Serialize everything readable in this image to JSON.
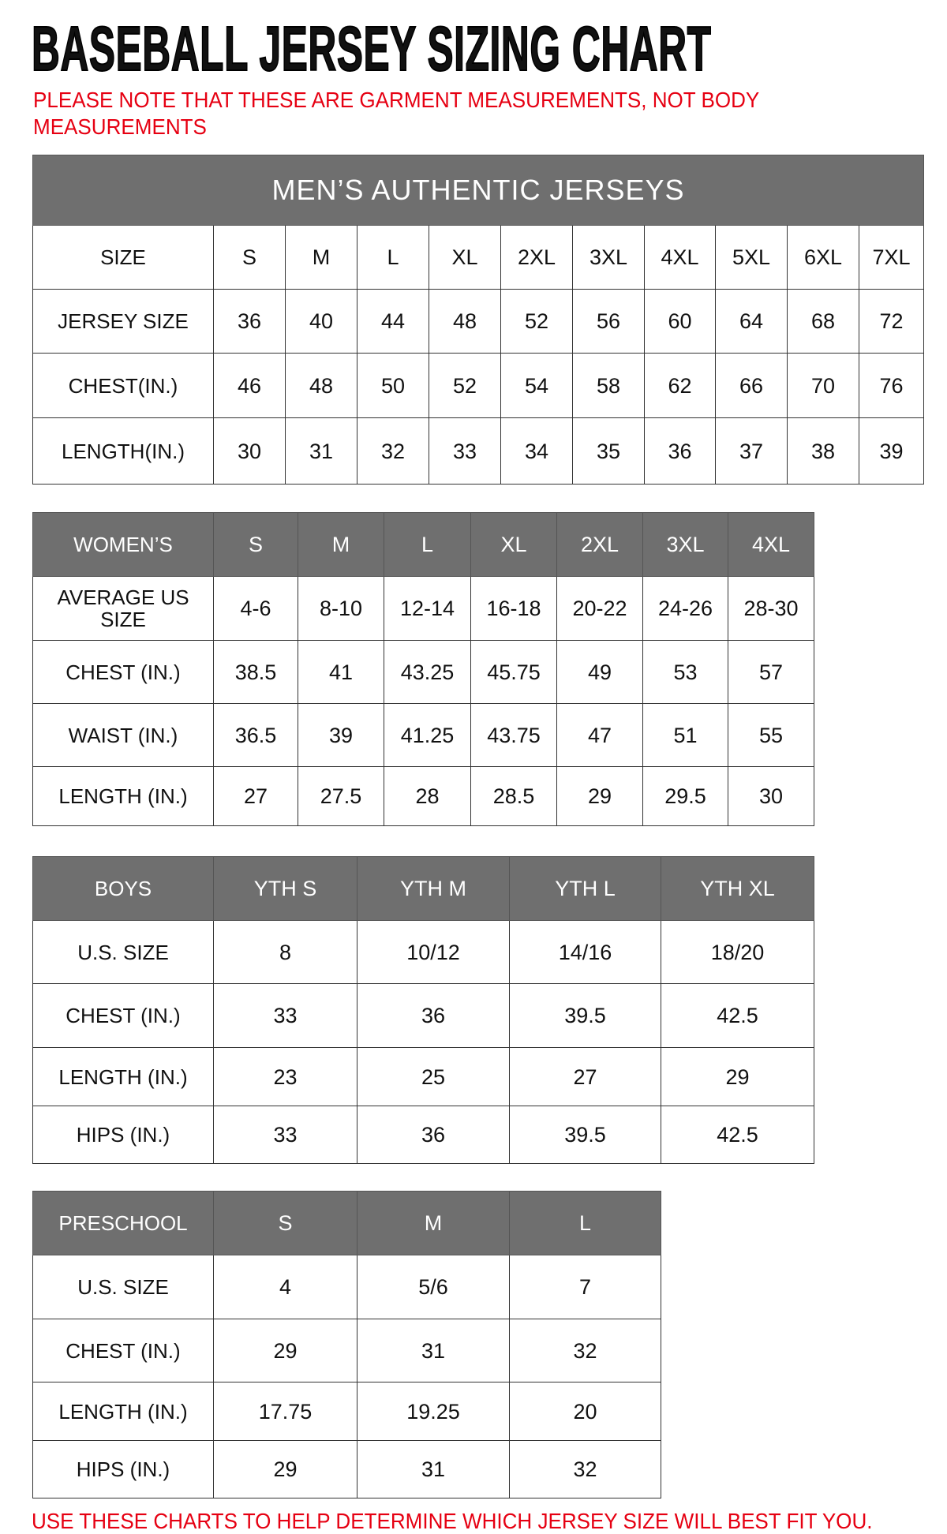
{
  "title": "BASEBALL JERSEY SIZING CHART",
  "note": "PLEASE NOTE THAT THESE ARE GARMENT MEASUREMENTS, NOT BODY MEASUREMENTS",
  "footer": "USE THESE CHARTS TO HELP DETERMINE WHICH JERSEY SIZE WILL BEST FIT YOU.",
  "colors": {
    "header_bg": "#6f6f6f",
    "note_red": "#e60012"
  },
  "tables": [
    {
      "id": "mens",
      "band": "MEN’S AUTHENTIC JERSEYS",
      "header_row_gray": false,
      "rows": [
        [
          "SIZE",
          "S",
          "M",
          "L",
          "XL",
          "2XL",
          "3XL",
          "4XL",
          "5XL",
          "6XL",
          "7XL"
        ],
        [
          "JERSEY SIZE",
          "36",
          "40",
          "44",
          "48",
          "52",
          "56",
          "60",
          "64",
          "68",
          "72"
        ],
        [
          "CHEST(IN.)",
          "46",
          "48",
          "50",
          "52",
          "54",
          "58",
          "62",
          "66",
          "70",
          "76"
        ],
        [
          "LENGTH(IN.)",
          "30",
          "31",
          "32",
          "33",
          "34",
          "35",
          "36",
          "37",
          "38",
          "39"
        ]
      ]
    },
    {
      "id": "womens",
      "header_row_gray": true,
      "rows": [
        [
          "WOMEN’S",
          "S",
          "M",
          "L",
          "XL",
          "2XL",
          "3XL",
          "4XL"
        ],
        [
          "AVERAGE US SIZE",
          "4-6",
          "8-10",
          "12-14",
          "16-18",
          "20-22",
          "24-26",
          "28-30"
        ],
        [
          "CHEST (IN.)",
          "38.5",
          "41",
          "43.25",
          "45.75",
          "49",
          "53",
          "57"
        ],
        [
          "WAIST (IN.)",
          "36.5",
          "39",
          "41.25",
          "43.75",
          "47",
          "51",
          "55"
        ],
        [
          "LENGTH (IN.)",
          "27",
          "27.5",
          "28",
          "28.5",
          "29",
          "29.5",
          "30"
        ]
      ]
    },
    {
      "id": "boys",
      "header_row_gray": true,
      "rows": [
        [
          "BOYS",
          "YTH S",
          "YTH M",
          "YTH L",
          "YTH XL"
        ],
        [
          "U.S. SIZE",
          "8",
          "10/12",
          "14/16",
          "18/20"
        ],
        [
          "CHEST (IN.)",
          "33",
          "36",
          "39.5",
          "42.5"
        ],
        [
          "LENGTH (IN.)",
          "23",
          "25",
          "27",
          "29"
        ],
        [
          "HIPS (IN.)",
          "33",
          "36",
          "39.5",
          "42.5"
        ]
      ]
    },
    {
      "id": "preschool",
      "header_row_gray": true,
      "rows": [
        [
          "PRESCHOOL",
          "S",
          "M",
          "L"
        ],
        [
          "U.S. SIZE",
          "4",
          "5/6",
          "7"
        ],
        [
          "CHEST (IN.)",
          "29",
          "31",
          "32"
        ],
        [
          "LENGTH (IN.)",
          "17.75",
          "19.25",
          "20"
        ],
        [
          "HIPS (IN.)",
          "29",
          "31",
          "32"
        ]
      ]
    }
  ]
}
